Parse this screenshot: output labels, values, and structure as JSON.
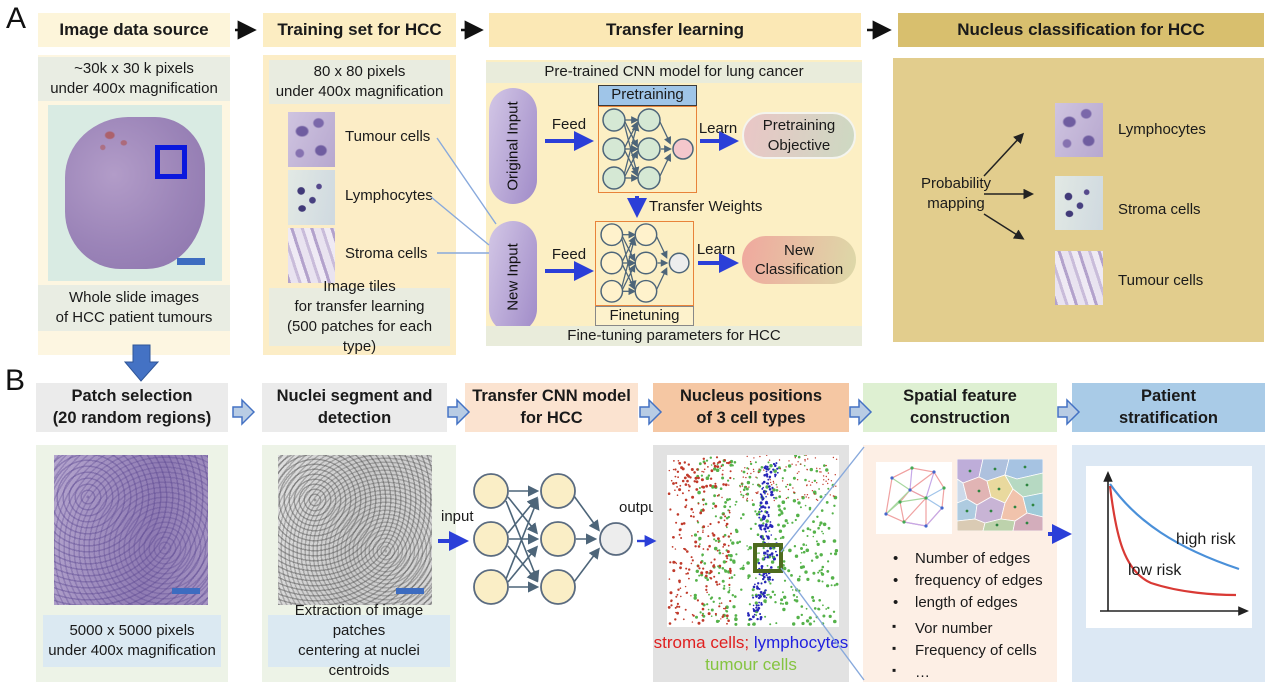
{
  "colors": {
    "legend_stroma_red": "#e01f1f",
    "legend_lymphocytes_blue": "#2121e0",
    "legend_tumour_green": "#85c440",
    "high_risk_curve": "#4a90d9",
    "low_risk_curve": "#d93a35",
    "arrow_accent_blue": "#2b3fd8",
    "block_arrow_blue": "#4472c4"
  },
  "panel_a": {
    "label": "A",
    "headers": [
      "Image data source",
      "Training set for HCC",
      "Transfer learning",
      "Nucleus classification for HCC"
    ],
    "image_source": {
      "spec_line1": "~30k x 30 k pixels",
      "spec_line2": "under 400x magnification",
      "caption_line1": "Whole slide images",
      "caption_line2": "of HCC patient tumours"
    },
    "training_set": {
      "spec_line1": "80 x 80 pixels",
      "spec_line2": "under 400x magnification",
      "tiles": [
        "Tumour cells",
        "Lymphocytes",
        "Stroma cells"
      ],
      "caption_line1": "Image tiles",
      "caption_line2": "for transfer learning",
      "caption_line3": "(500 patches for each type)"
    },
    "transfer_learning": {
      "pretrained_banner": "Pre-trained CNN model for lung cancer",
      "pretraining_tag": "Pretraining",
      "original_input": "Original Input",
      "new_input": "New Input",
      "feed_top": "Feed",
      "feed_bottom": "Feed",
      "learn_top": "Learn",
      "learn_bottom": "Learn",
      "pretraining_objective_line1": "Pretraining",
      "pretraining_objective_line2": "Objective",
      "transfer_weights": "Transfer Weights",
      "new_classification_line1": "New",
      "new_classification_line2": "Classification",
      "finetuning_tag": "Finetuning",
      "finetune_banner": "Fine-tuning parameters for HCC"
    },
    "classification": {
      "prob_line1": "Probability",
      "prob_line2": "mapping",
      "items": [
        "Lymphocytes",
        "Stroma cells",
        "Tumour cells"
      ]
    }
  },
  "panel_b": {
    "label": "B",
    "headers": [
      {
        "line1": "Patch selection",
        "line2": "(20 random regions)"
      },
      {
        "line1": "Nuclei segment and",
        "line2": "detection"
      },
      {
        "line1": "Transfer CNN model",
        "line2": "for HCC"
      },
      {
        "line1": "Nucleus positions",
        "line2": "of 3 cell types"
      },
      {
        "line1": "Spatial feature",
        "line2": "construction"
      },
      {
        "line1": "Patient",
        "line2": "stratification"
      }
    ],
    "patch_selection": {
      "caption_line1": "5000 x 5000 pixels",
      "caption_line2": "under 400x magnification"
    },
    "nuclei_segment": {
      "caption_line1": "Extraction of image patches",
      "caption_line2": "centering at nuclei centroids"
    },
    "cnn": {
      "input_label": "input",
      "output_label": "output"
    },
    "nucleus_positions": {
      "legend_stroma": "stroma cells;",
      "legend_lymphocytes": "lymphocytes",
      "legend_tumour": "tumour cells"
    },
    "spatial_features": {
      "edge_bullets": [
        "Number of edges",
        "frequency of edges",
        "length of edges"
      ],
      "cell_bullets": [
        "Vor number",
        "Frequency of cells",
        "…"
      ]
    },
    "stratification": {
      "high_risk": "high risk",
      "low_risk": "low risk"
    }
  }
}
